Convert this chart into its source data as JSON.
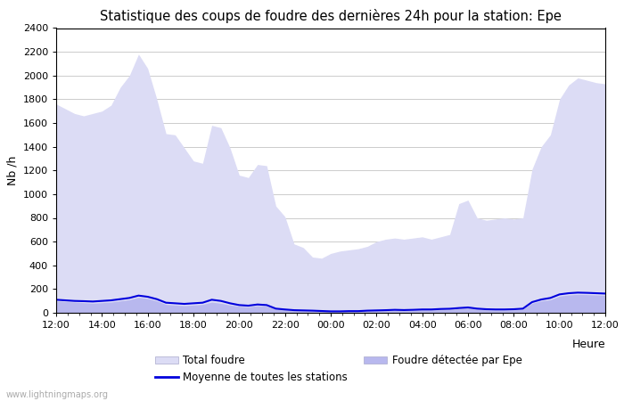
{
  "title": "Statistique des coups de foudre des dernières 24h pour la station: Epe",
  "xlabel": "Heure",
  "ylabel": "Nb /h",
  "ylim": [
    0,
    2400
  ],
  "yticks": [
    0,
    200,
    400,
    600,
    800,
    1000,
    1200,
    1400,
    1600,
    1800,
    2000,
    2200,
    2400
  ],
  "xtick_labels": [
    "12:00",
    "14:00",
    "16:00",
    "18:00",
    "20:00",
    "22:00",
    "00:00",
    "02:00",
    "04:00",
    "06:00",
    "08:00",
    "10:00",
    "12:00"
  ],
  "watermark": "www.lightningmaps.org",
  "color_total": "#dcdcf5",
  "color_epe": "#b8b8ee",
  "color_line": "#0000dd",
  "bg_color": "#ffffff",
  "total_foudre": [
    1760,
    1720,
    1680,
    1660,
    1680,
    1700,
    1750,
    1900,
    2000,
    2180,
    2060,
    1800,
    1510,
    1500,
    1390,
    1280,
    1260,
    1580,
    1560,
    1390,
    1160,
    1140,
    1250,
    1240,
    900,
    810,
    580,
    550,
    470,
    460,
    500,
    520,
    530,
    540,
    560,
    600,
    620,
    630,
    620,
    630,
    640,
    620,
    640,
    660,
    920,
    950,
    800,
    780,
    790,
    800,
    790,
    800,
    1210,
    1400,
    1500,
    1800,
    1920,
    1980,
    1960,
    1940,
    1930
  ],
  "foudre_epe": [
    100,
    95,
    90,
    85,
    80,
    85,
    90,
    100,
    110,
    130,
    120,
    100,
    70,
    65,
    60,
    65,
    70,
    90,
    80,
    65,
    55,
    50,
    60,
    55,
    30,
    25,
    20,
    18,
    15,
    12,
    10,
    10,
    12,
    12,
    15,
    18,
    20,
    22,
    20,
    22,
    25,
    25,
    28,
    30,
    35,
    40,
    30,
    25,
    22,
    22,
    25,
    30,
    80,
    100,
    110,
    140,
    150,
    155,
    153,
    150,
    148
  ],
  "moyenne": [
    110,
    105,
    100,
    98,
    95,
    100,
    105,
    115,
    125,
    145,
    135,
    115,
    85,
    80,
    75,
    80,
    85,
    110,
    100,
    80,
    65,
    60,
    70,
    65,
    35,
    28,
    22,
    20,
    18,
    15,
    12,
    12,
    14,
    14,
    18,
    20,
    22,
    25,
    23,
    25,
    28,
    28,
    32,
    34,
    40,
    45,
    35,
    30,
    28,
    28,
    30,
    35,
    90,
    112,
    125,
    155,
    165,
    170,
    168,
    165,
    162
  ]
}
